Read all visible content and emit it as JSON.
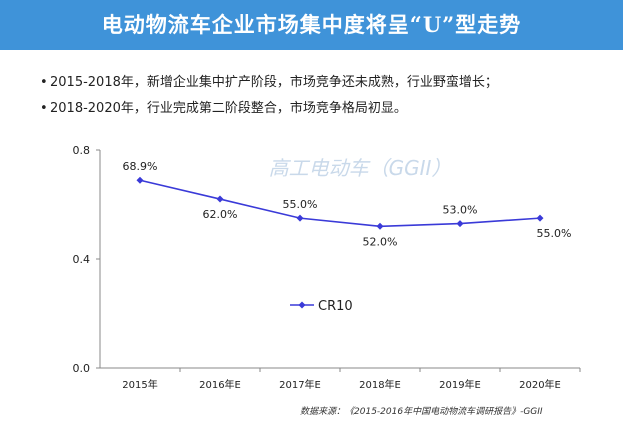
{
  "page": {
    "title": "电动物流车企业市场集中度将呈“U”型走势",
    "bullets": [
      "2015-2018年，新增企业集中扩产阶段，市场竞争还未成熟，行业野蛮增长；",
      "2018-2020年，行业完成第二阶段整合，市场竞争格局初显。"
    ],
    "source_prefix": "数据来源：",
    "source": "《2015-2016年中国电动物流车调研报告》-GGII",
    "watermark": "高工电动车（GGII）"
  },
  "colors": {
    "title_bar": "#3f93d9",
    "series": "#3a3ad8",
    "axis": "#888888",
    "text": "#222222"
  },
  "chart_data": {
    "type": "line",
    "categories": [
      "2015年",
      "2016年E",
      "2017年E",
      "2018年E",
      "2019年E",
      "2020年E"
    ],
    "series": [
      {
        "name": "CR10",
        "values": [
          0.689,
          0.62,
          0.55,
          0.52,
          0.53,
          0.55
        ],
        "labels": [
          "68.9%",
          "62.0%",
          "55.0%",
          "52.0%",
          "53.0%",
          "55.0%"
        ]
      }
    ],
    "ylim": [
      0,
      0.8
    ],
    "yticks": [
      "0.0",
      "0.4",
      "0.8"
    ],
    "grid": false,
    "legend": "center"
  }
}
